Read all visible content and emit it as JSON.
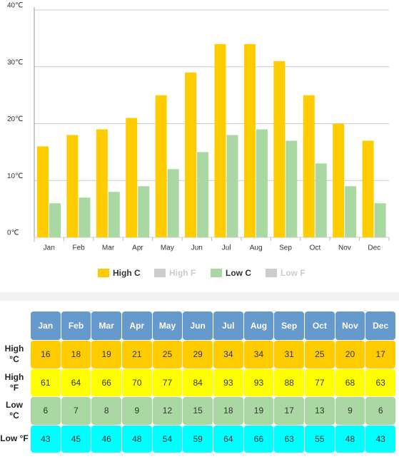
{
  "chart_data": {
    "type": "bar",
    "categories": [
      "Jan",
      "Feb",
      "Mar",
      "Apr",
      "May",
      "Jun",
      "Jul",
      "Aug",
      "Sep",
      "Oct",
      "Nov",
      "Dec"
    ],
    "series": [
      {
        "name": "High C",
        "color": "#ffcc00",
        "values": [
          16,
          18,
          19,
          21,
          25,
          29,
          34,
          34,
          31,
          25,
          20,
          17
        ]
      },
      {
        "name": "Low C",
        "color": "#aad8a2",
        "values": [
          6,
          7,
          8,
          9,
          12,
          15,
          18,
          19,
          17,
          13,
          9,
          6
        ]
      }
    ],
    "legend_hidden": [
      {
        "name": "High F",
        "color": "#cccccc"
      },
      {
        "name": "Low F",
        "color": "#cccccc"
      }
    ],
    "ylim": [
      0,
      40
    ],
    "yticks": [
      {
        "value": 0,
        "label": "0℃"
      },
      {
        "value": 10,
        "label": "10℃"
      },
      {
        "value": 20,
        "label": "20℃"
      },
      {
        "value": 30,
        "label": "30℃"
      },
      {
        "value": 40,
        "label": "40℃"
      }
    ],
    "grid": true
  },
  "table": {
    "header": [
      "Jan",
      "Feb",
      "Mar",
      "Apr",
      "May",
      "Jun",
      "Jul",
      "Aug",
      "Sep",
      "Oct",
      "Nov",
      "Dec"
    ],
    "rows": [
      {
        "label": "High °C",
        "color": "#ffcc00",
        "cells": [
          "16",
          "18",
          "19",
          "21",
          "25",
          "29",
          "34",
          "34",
          "31",
          "25",
          "20",
          "17"
        ]
      },
      {
        "label": "High °F",
        "color": "#ffff00",
        "cells": [
          "61",
          "64",
          "66",
          "70",
          "77",
          "84",
          "93",
          "93",
          "88",
          "77",
          "68",
          "63"
        ]
      },
      {
        "label": "Low °C",
        "color": "#aad8a2",
        "cells": [
          "6",
          "7",
          "8",
          "9",
          "12",
          "15",
          "18",
          "19",
          "17",
          "13",
          "9",
          "6"
        ]
      },
      {
        "label": "Low °F",
        "color": "#00ffff",
        "cells": [
          "43",
          "45",
          "46",
          "48",
          "54",
          "59",
          "64",
          "66",
          "63",
          "55",
          "48",
          "43"
        ]
      }
    ]
  }
}
